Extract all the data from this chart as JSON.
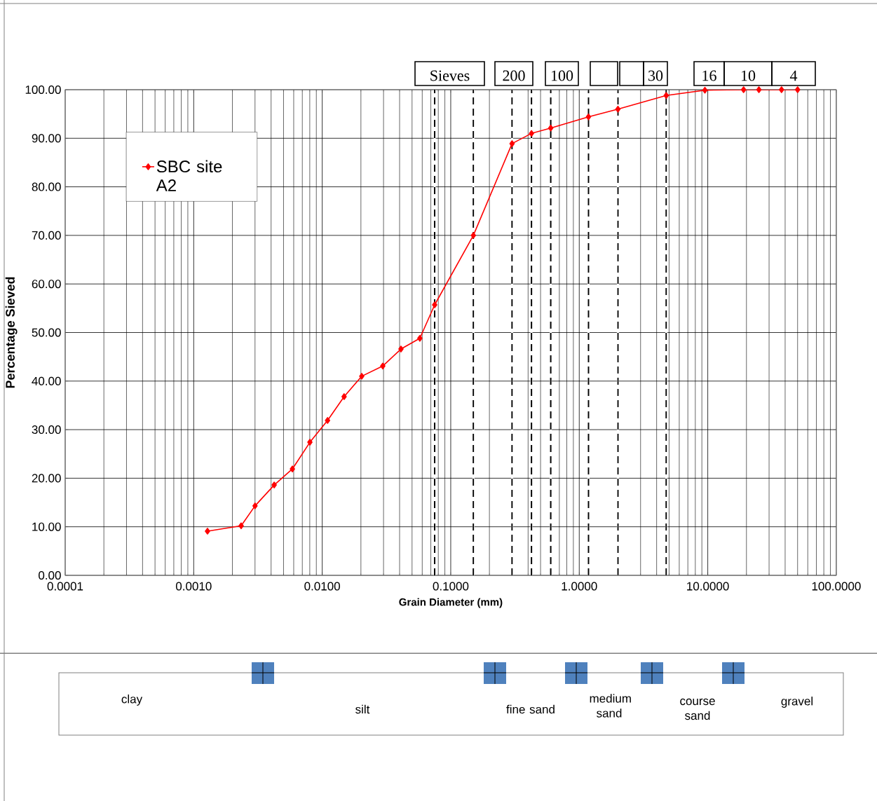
{
  "chart_data": {
    "type": "line",
    "xlabel": "Grain Diameter (mm)",
    "ylabel": "Percentage Sieved",
    "x": [
      0.00128,
      0.00234,
      0.003,
      0.00423,
      0.00586,
      0.00802,
      0.011,
      0.0148,
      0.0203,
      0.0296,
      0.041,
      0.0575,
      0.075,
      0.15,
      0.3,
      0.425,
      0.6,
      1.18,
      2,
      4.75,
      9.5,
      19,
      25,
      37.5,
      50
    ],
    "series": [
      {
        "name": "SBC site A2",
        "color": "#ff0000",
        "values": [
          9.1,
          10.2,
          14.3,
          18.6,
          21.9,
          27.4,
          31.9,
          36.8,
          41.0,
          43.1,
          46.6,
          48.8,
          55.7,
          70.0,
          88.9,
          91.0,
          92.1,
          94.4,
          96.0,
          98.8,
          99.9,
          100,
          100,
          100,
          100
        ]
      }
    ],
    "log": "x",
    "xlim": [
      0.0001,
      100
    ],
    "ylim": [
      0,
      100
    ],
    "xticks": [
      {
        "value": 0.0001,
        "label": "0.0001"
      },
      {
        "value": 0.001,
        "label": "0.0010"
      },
      {
        "value": 0.01,
        "label": "0.0100"
      },
      {
        "value": 0.1,
        "label": "0.1000"
      },
      {
        "value": 1,
        "label": "1.0000"
      },
      {
        "value": 10,
        "label": "10.0000"
      },
      {
        "value": 100,
        "label": "100.0000"
      }
    ],
    "yticks": [
      {
        "value": 0,
        "label": "0.00"
      },
      {
        "value": 10,
        "label": "10.00"
      },
      {
        "value": 20,
        "label": "20.00"
      },
      {
        "value": 30,
        "label": "30.00"
      },
      {
        "value": 40,
        "label": "40.00"
      },
      {
        "value": 50,
        "label": "50.00"
      },
      {
        "value": 60,
        "label": "60.00"
      },
      {
        "value": 70,
        "label": "70.00"
      },
      {
        "value": 80,
        "label": "80.00"
      },
      {
        "value": 90,
        "label": "90.00"
      },
      {
        "value": 100,
        "label": "100.00"
      }
    ],
    "grid": true,
    "legend": "top left",
    "marker": "diamond",
    "line_style": "solid",
    "ref_lines": [
      {
        "axis": "x",
        "value": 0.075,
        "color": "#000000",
        "line_style": "dashed"
      },
      {
        "axis": "x",
        "value": 0.15,
        "color": "#000000",
        "line_style": "dashed"
      },
      {
        "axis": "x",
        "value": 0.3,
        "color": "#000000",
        "line_style": "dashed"
      },
      {
        "axis": "x",
        "value": 0.425,
        "color": "#000000",
        "line_style": "dashed"
      },
      {
        "axis": "x",
        "value": 0.6,
        "color": "#000000",
        "line_style": "dashed"
      },
      {
        "axis": "x",
        "value": 1.18,
        "color": "#000000",
        "line_style": "dashed"
      },
      {
        "axis": "x",
        "value": 2,
        "color": "#000000",
        "line_style": "dashed"
      },
      {
        "axis": "x",
        "value": 4.75,
        "color": "#000000",
        "line_style": "dashed"
      }
    ],
    "annotations": [
      "Sieves",
      "200",
      "100",
      "30",
      "16",
      "10",
      "4",
      "clay",
      "silt",
      "fine sand",
      "medium sand",
      "course sand",
      "gravel"
    ]
  }
}
